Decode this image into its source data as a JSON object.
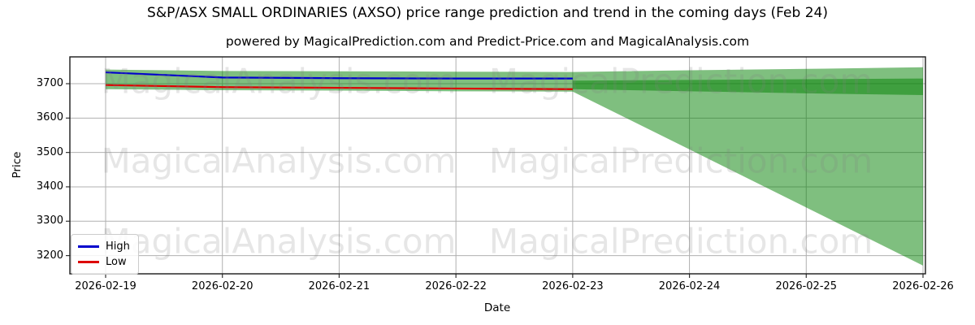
{
  "chart_data": {
    "type": "area",
    "title": "S&P/ASX SMALL ORDINARIES (AXSO) price range prediction and trend in the coming days (Feb 24)",
    "subtitle": "powered by MagicalPrediction.com and Predict-Price.com and MagicalAnalysis.com",
    "xlabel": "Date",
    "ylabel": "Price",
    "x_labels": [
      "2026-02-19",
      "2026-02-20",
      "2026-02-21",
      "2026-02-22",
      "2026-02-23",
      "2026-02-24",
      "2026-02-25",
      "2026-02-26"
    ],
    "y_ticks": [
      3200,
      3300,
      3400,
      3500,
      3600,
      3700
    ],
    "ylim": [
      3147,
      3778
    ],
    "grid": true,
    "legend_position": "lower-left",
    "series": [
      {
        "name": "High",
        "color": "#0000cd",
        "x": [
          0,
          1,
          2,
          3,
          4
        ],
        "values": [
          3733,
          3718,
          3716,
          3715,
          3715
        ]
      },
      {
        "name": "Low",
        "color": "#dd0000",
        "x": [
          0,
          1,
          2,
          3,
          4
        ],
        "values": [
          3696,
          3690,
          3688,
          3686,
          3684
        ]
      }
    ],
    "bands": {
      "history_band": {
        "x": [
          0,
          1,
          2,
          3,
          4
        ],
        "top": [
          3741,
          3737,
          3736,
          3735,
          3734
        ],
        "bottom": [
          3684,
          3681,
          3680,
          3678,
          3677
        ]
      },
      "forecast_outer": {
        "x": [
          4,
          5,
          6,
          7
        ],
        "top": [
          3734,
          3739,
          3743,
          3748
        ],
        "bottom": [
          3677,
          3509,
          3340,
          3171
        ]
      },
      "forecast_inner": {
        "x": [
          4,
          5,
          6,
          7
        ],
        "top": [
          3709,
          3711,
          3713,
          3715
        ],
        "bottom": [
          3684,
          3678,
          3672,
          3667
        ]
      }
    },
    "colors": {
      "band_fill": "rgba(0,128,0,0.5)",
      "band_fill_inner": "rgba(0,128,0,0.5)",
      "grid": "#b0b0b0",
      "spine": "#1a1a1a",
      "tick": "#333333",
      "watermark": "rgba(128,128,128,0.2)"
    },
    "watermarks": [
      "MagicalAnalysis.com",
      "MagicalPrediction.com"
    ]
  }
}
